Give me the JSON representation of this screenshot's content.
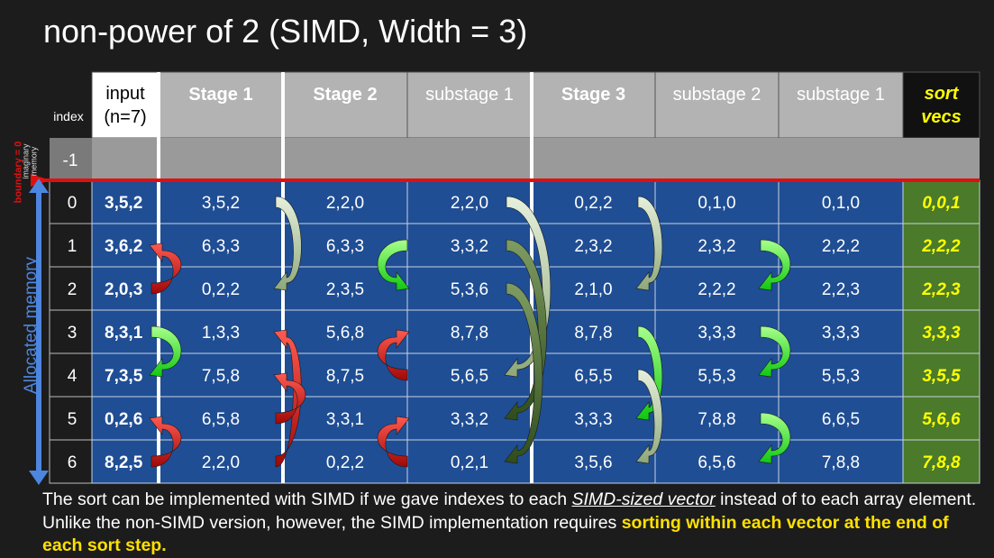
{
  "title": "non-power of 2 (SIMD, Width = 3)",
  "index_header": "index",
  "headers": [
    {
      "text": "input\n(n=7)",
      "style": "input"
    },
    {
      "text": "Stage 1",
      "style": "bold"
    },
    {
      "text": "Stage 2",
      "style": "bold"
    },
    {
      "text": "substage 1",
      "style": "plain"
    },
    {
      "text": "Stage 3",
      "style": "bold"
    },
    {
      "text": "substage 2",
      "style": "plain"
    },
    {
      "text": "substage 1",
      "style": "plain"
    },
    {
      "text": "sort\nvecs",
      "style": "sort"
    }
  ],
  "imaginary_row_index": "-1",
  "side_labels": {
    "allocated": "Allocated memory",
    "boundary": "boundary = 0",
    "imaginary": "imaginary\nmemory"
  },
  "rows": [
    {
      "index": "0",
      "cells": [
        "3,5,2",
        "3,5,2",
        "2,2,0",
        "2,2,0",
        "0,2,2",
        "0,1,0",
        "0,1,0",
        "0,0,1"
      ]
    },
    {
      "index": "1",
      "cells": [
        "3,6,2",
        "6,3,3",
        "6,3,3",
        "3,3,2",
        "2,3,2",
        "2,3,2",
        "2,2,2",
        "2,2,2"
      ]
    },
    {
      "index": "2",
      "cells": [
        "2,0,3",
        "0,2,2",
        "2,3,5",
        "5,3,6",
        "2,1,0",
        "2,2,2",
        "2,2,3",
        "2,2,3"
      ]
    },
    {
      "index": "3",
      "cells": [
        "8,3,1",
        "1,3,3",
        "5,6,8",
        "8,7,8",
        "8,7,8",
        "3,3,3",
        "3,3,3",
        "3,3,3"
      ]
    },
    {
      "index": "4",
      "cells": [
        "7,3,5",
        "7,5,8",
        "8,7,5",
        "5,6,5",
        "6,5,5",
        "5,5,3",
        "5,5,3",
        "3,5,5"
      ]
    },
    {
      "index": "5",
      "cells": [
        "0,2,6",
        "6,5,8",
        "3,3,1",
        "3,3,2",
        "3,3,3",
        "7,8,8",
        "6,6,5",
        "5,6,6"
      ]
    },
    {
      "index": "6",
      "cells": [
        "8,2,5",
        "2,2,0",
        "0,2,2",
        "0,2,1",
        "3,5,6",
        "6,5,6",
        "7,8,8",
        "7,8,8"
      ]
    }
  ],
  "note": {
    "part1": "The sort can be implemented with SIMD if we gave indexes to each ",
    "em": "SIMD-sized vector",
    "part2": " instead of to each array element. Unlike the non-SIMD version, however, the SIMD implementation requires ",
    "highlight": "sorting within each vector at the end of each sort step."
  },
  "colors": {
    "background": "#1c1c1c",
    "header_gray": "#b3b3b3",
    "cell_blue": "#1f4e94",
    "sort_green": "#4a7a2a",
    "sort_text": "#ffff00",
    "boundary_red": "#e01010",
    "arrow_red": "#c41010",
    "arrow_green": "#22ee22",
    "arrow_sage": "#b7cca0",
    "arrow_dark_green": "#4a6e2e",
    "side_blue": "#4d86df"
  }
}
